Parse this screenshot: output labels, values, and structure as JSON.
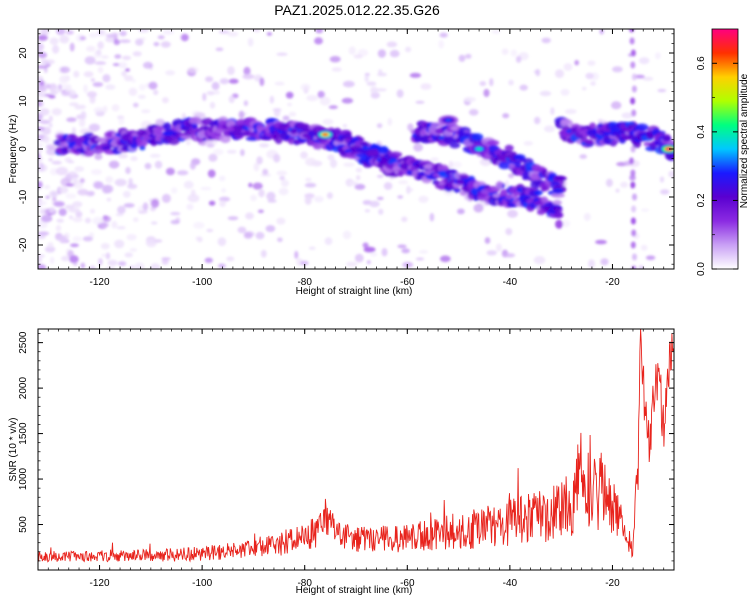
{
  "title": "PAZ1.2025.012.22.35.G26",
  "colors": {
    "snr_line": "#e8231c",
    "axis": "#000000",
    "colormap": [
      "#ffffff",
      "#c9a0f5",
      "#8b2be2",
      "#5a00d0",
      "#1a1aff",
      "#00c8ff",
      "#00ff80",
      "#b0ff00",
      "#ffd000",
      "#ff3000",
      "#ff0080"
    ]
  },
  "chart_data": [
    {
      "type": "heatmap",
      "xlabel": "Height of straight line (km)",
      "ylabel": "Frequency (Hz)",
      "xlim": [
        -132,
        -8
      ],
      "ylim": [
        -25,
        25
      ],
      "xticks": [
        -120,
        -100,
        -80,
        -60,
        -40,
        -20
      ],
      "xtick_labels": [
        "-120",
        "-100",
        "-80",
        "-60",
        "-40",
        "-20"
      ],
      "yticks": [
        -20,
        -10,
        0,
        10,
        20
      ],
      "ytick_labels": [
        "-20",
        "-10",
        "0",
        "10",
        "20"
      ],
      "colorbar": {
        "label": "Normalized spectral amplitude",
        "range": [
          0,
          0.7
        ],
        "ticks": [
          0,
          0.2,
          0.4,
          0.6
        ],
        "tick_labels": [
          "0.0",
          "0.2",
          "0.4",
          "0.6"
        ]
      },
      "ridges": [
        {
          "x": [
            -128,
            -120,
            -112,
            -104,
            -96,
            -88,
            -80,
            -74,
            -68,
            -62
          ],
          "y": [
            1,
            1,
            2,
            4,
            4,
            4,
            3,
            2,
            0,
            -4
          ]
        },
        {
          "x": [
            -74,
            -68,
            -62,
            -56,
            -50,
            -44,
            -38,
            -34,
            -30
          ],
          "y": [
            1,
            -1,
            -3,
            -5,
            -7,
            -9,
            -10,
            -11,
            -14
          ]
        },
        {
          "x": [
            -58,
            -52,
            -46,
            -40,
            -34,
            -30
          ],
          "y": [
            4,
            3,
            1,
            -2,
            -6,
            -8
          ]
        },
        {
          "x": [
            -30,
            -26,
            -22,
            -18,
            -14,
            -10,
            -8
          ],
          "y": [
            4,
            3,
            3,
            3,
            3,
            1,
            0
          ]
        }
      ],
      "peaks": [
        {
          "x": -76,
          "y": 3,
          "amplitude": 0.62
        },
        {
          "x": -9,
          "y": 0,
          "amplitude": 0.7
        },
        {
          "x": -46,
          "y": 0,
          "amplitude": 0.4
        },
        {
          "x": -52,
          "y": 6,
          "amplitude": 0.3
        }
      ]
    },
    {
      "type": "line",
      "xlabel": "Height of straight line (km)",
      "ylabel": "SNR (10 * v/v)",
      "xlim": [
        -132,
        -8
      ],
      "ylim": [
        0,
        2650
      ],
      "xticks": [
        -120,
        -100,
        -80,
        -60,
        -40,
        -20
      ],
      "xtick_labels": [
        "-120",
        "-100",
        "-80",
        "-60",
        "-40",
        "-20"
      ],
      "yticks": [
        500,
        1000,
        1500,
        2000,
        2500
      ],
      "ytick_labels": [
        "500",
        "1000",
        "1500",
        "2000",
        "2500"
      ],
      "series": [
        {
          "x": [
            -132,
            -120,
            -110,
            -100,
            -90,
            -84,
            -78,
            -76,
            -72,
            -68,
            -64,
            -60,
            -56,
            -52,
            -48,
            -44,
            -40,
            -36,
            -32,
            -28,
            -26,
            -24,
            -22,
            -20,
            -18,
            -16,
            -15,
            -14.5,
            -14,
            -13,
            -12,
            -11,
            -10,
            -9,
            -8
          ],
          "y": [
            150,
            150,
            160,
            180,
            230,
            300,
            400,
            550,
            380,
            330,
            340,
            360,
            380,
            420,
            450,
            480,
            520,
            560,
            600,
            750,
            1100,
            800,
            900,
            700,
            500,
            200,
            1200,
            2650,
            2000,
            1400,
            1800,
            2150,
            1500,
            2300,
            2500
          ],
          "amplitude": [
            60,
            60,
            70,
            80,
            100,
            140,
            180,
            150,
            160,
            150,
            150,
            160,
            170,
            200,
            220,
            240,
            260,
            280,
            300,
            380,
            450,
            400,
            450,
            350,
            220,
            80,
            350,
            300,
            350,
            300,
            300,
            300,
            300,
            300,
            200
          ]
        }
      ]
    }
  ]
}
